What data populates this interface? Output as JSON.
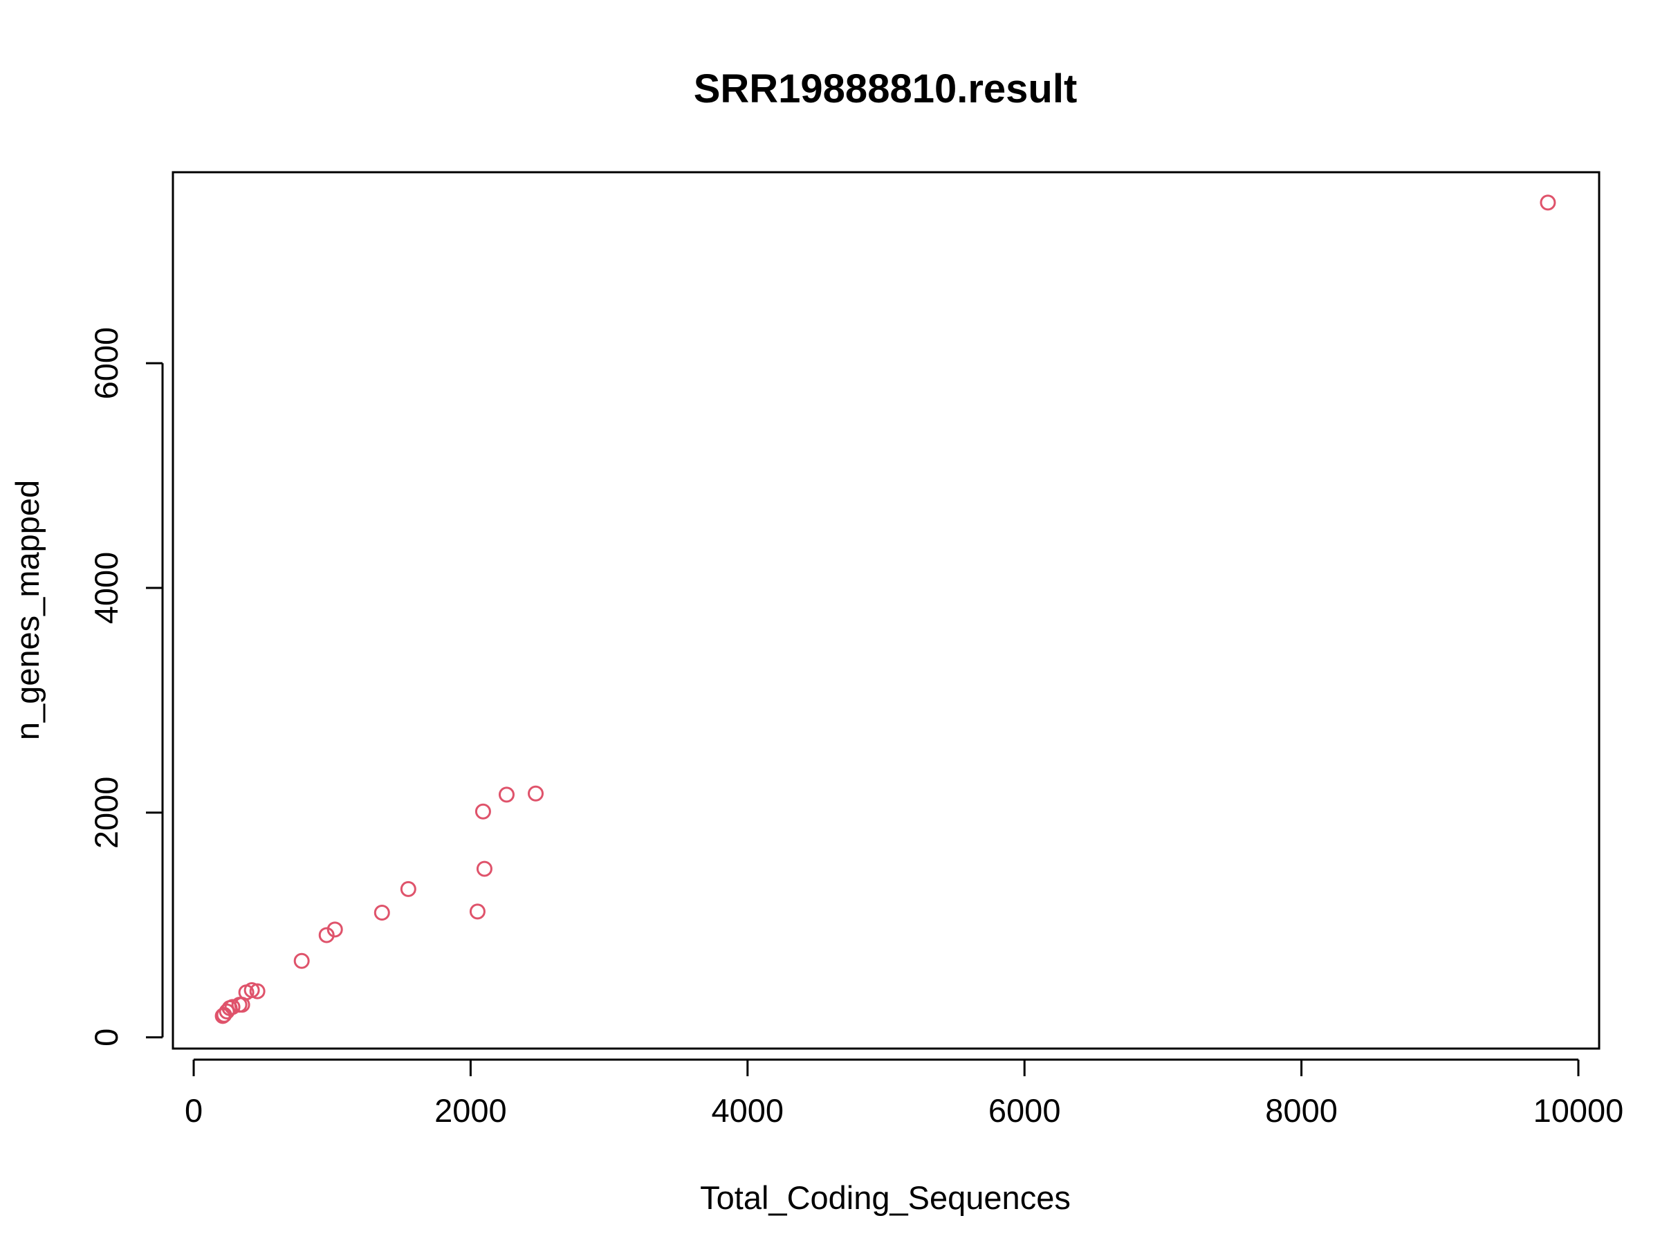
{
  "chart_data": {
    "type": "scatter",
    "title": "SRR19888810.result",
    "xlabel": "Total_Coding_Sequences",
    "ylabel": "n_genes_mapped",
    "xlim": [
      -150,
      10150
    ],
    "ylim": [
      -100,
      7700
    ],
    "x_ticks": [
      0,
      2000,
      4000,
      6000,
      8000,
      10000
    ],
    "y_ticks": [
      0,
      2000,
      4000,
      6000
    ],
    "x_tick_labels": [
      "0",
      "2000",
      "4000",
      "6000",
      "8000",
      "10000"
    ],
    "y_tick_labels": [
      "0",
      "2000",
      "4000",
      "6000"
    ],
    "grid": false,
    "point_color": "#df536b",
    "points": [
      {
        "x": 9780,
        "y": 7430
      },
      {
        "x": 2470,
        "y": 2170
      },
      {
        "x": 2260,
        "y": 2160
      },
      {
        "x": 2090,
        "y": 2010
      },
      {
        "x": 2100,
        "y": 1500
      },
      {
        "x": 2050,
        "y": 1120
      },
      {
        "x": 1550,
        "y": 1320
      },
      {
        "x": 1360,
        "y": 1110
      },
      {
        "x": 1020,
        "y": 960
      },
      {
        "x": 960,
        "y": 910
      },
      {
        "x": 780,
        "y": 680
      },
      {
        "x": 460,
        "y": 410
      },
      {
        "x": 420,
        "y": 420
      },
      {
        "x": 380,
        "y": 400
      },
      {
        "x": 350,
        "y": 290
      },
      {
        "x": 330,
        "y": 290
      },
      {
        "x": 280,
        "y": 270
      },
      {
        "x": 260,
        "y": 260
      },
      {
        "x": 240,
        "y": 230
      },
      {
        "x": 220,
        "y": 200
      },
      {
        "x": 210,
        "y": 190
      }
    ]
  }
}
